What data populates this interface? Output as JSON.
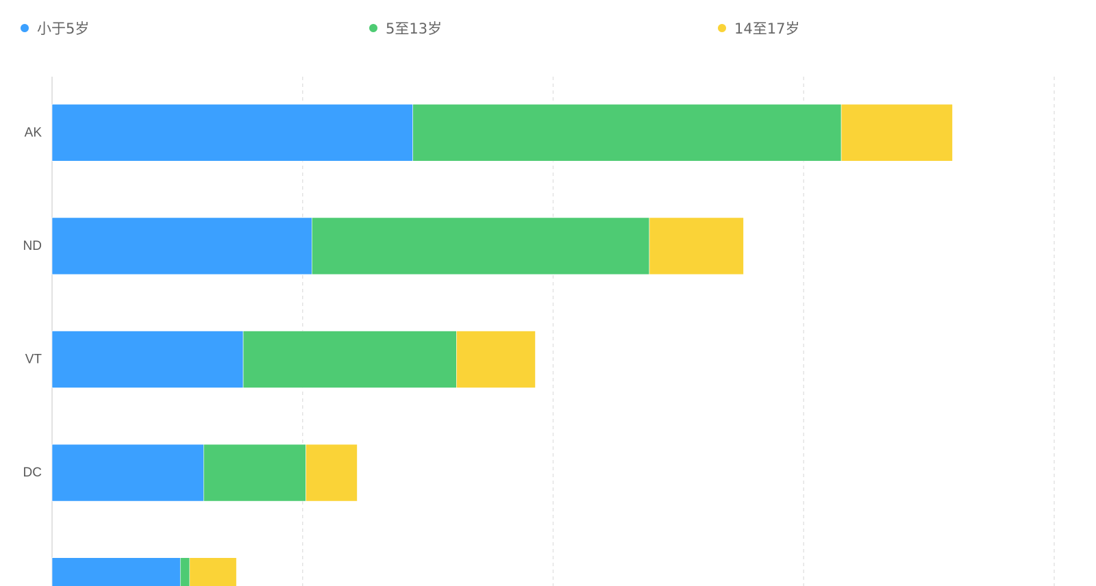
{
  "chart_data": {
    "type": "bar",
    "orientation": "horizontal",
    "stacked": true,
    "categories": [
      "AK",
      "ND",
      "VT",
      "DC",
      ""
    ],
    "series": [
      {
        "name": "小于5岁",
        "color": "#3ba0ff",
        "values": [
          0.144,
          0.1037,
          0.0763,
          0.0605,
          0.0512
        ]
      },
      {
        "name": "5至13岁",
        "color": "#4ecb73",
        "values": [
          0.171,
          0.1347,
          0.0851,
          0.0408,
          0.0037
        ]
      },
      {
        "name": "14至17岁",
        "color": "#fad337",
        "values": [
          0.0444,
          0.0376,
          0.0315,
          0.0205,
          0.0187
        ]
      }
    ],
    "xlim": [
      0,
      0.4
    ],
    "x_grid_ticks": [
      0,
      0.1,
      0.2,
      0.3,
      0.4
    ],
    "grid": true,
    "legend_position": "top"
  }
}
